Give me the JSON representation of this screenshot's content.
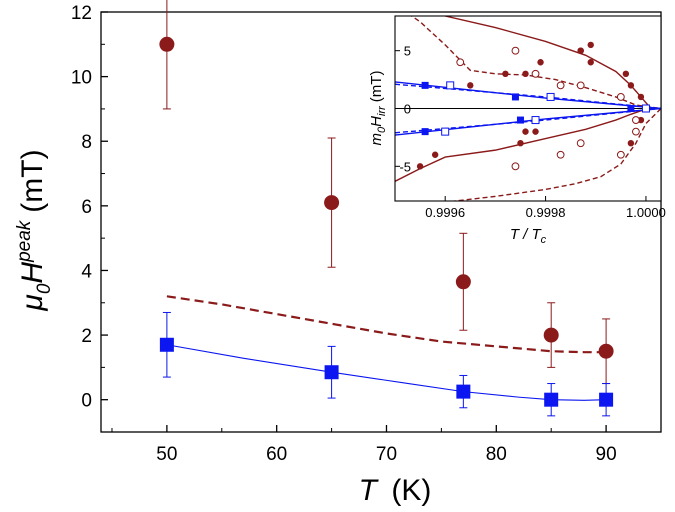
{
  "colors": {
    "red": "#8b1a1a",
    "blue": "#0b16f0",
    "axis": "#000000"
  },
  "chart_data": [
    {
      "type": "scatter",
      "name": "main",
      "xlabel": {
        "base": "T",
        "unit": "(K)"
      },
      "ylabel": {
        "prefix": "μ",
        "prefix_sub": "0",
        "base": "H",
        "sup": "peak",
        "unit": "(mT)"
      },
      "xlim": [
        44,
        95
      ],
      "ylim": [
        -1,
        12
      ],
      "x_ticks": [
        50,
        60,
        70,
        80,
        90
      ],
      "x_tick_labels": [
        "50",
        "60",
        "70",
        "80",
        "90"
      ],
      "y_ticks": [
        0,
        2,
        4,
        6,
        8,
        10,
        12
      ],
      "y_tick_labels": [
        "0",
        "2",
        "4",
        "6",
        "8",
        "10",
        "12"
      ],
      "series": [
        {
          "marker": "circle",
          "color": "red",
          "x": [
            50,
            65,
            77,
            85,
            90
          ],
          "y": [
            11.0,
            6.1,
            3.65,
            2.0,
            1.5
          ],
          "err": [
            2.0,
            2.0,
            1.5,
            1.0,
            1.0
          ]
        },
        {
          "marker": "square",
          "color": "blue",
          "x": [
            50,
            65,
            77,
            85,
            90
          ],
          "y": [
            1.7,
            0.85,
            0.25,
            0.0,
            0.0
          ],
          "err": [
            1.0,
            0.8,
            0.5,
            0.5,
            0.5
          ],
          "line": {
            "style": "solid",
            "x": [
              50,
              57,
              65,
              72,
              77,
              82,
              85,
              88,
              90
            ],
            "y": [
              1.7,
              1.28,
              0.85,
              0.5,
              0.25,
              0.08,
              0.0,
              -0.02,
              0.0
            ]
          }
        },
        {
          "marker": "none",
          "color": "red",
          "line": {
            "style": "dashed",
            "x": [
              50,
              55,
              60,
              65,
              70,
              75,
              80,
              85,
              88,
              90
            ],
            "y": [
              3.2,
              2.95,
              2.65,
              2.35,
              2.05,
              1.8,
              1.65,
              1.5,
              1.47,
              1.47
            ]
          }
        }
      ]
    },
    {
      "type": "scatter",
      "name": "inset",
      "xlabel": {
        "base": "T / T",
        "sub": "c"
      },
      "ylabel": {
        "prefix": "m",
        "prefix_sub": "0",
        "base": "H",
        "sub": "irr",
        "unit": "(mT)"
      },
      "xlim": [
        0.9995,
        1.00003
      ],
      "ylim": [
        -8,
        8
      ],
      "x_ticks": [
        0.9996,
        0.9998,
        1.0
      ],
      "x_tick_labels": [
        "0.9996",
        "0.9998",
        "1.0000"
      ],
      "y_ticks": [
        -5,
        0,
        5
      ],
      "y_tick_labels": [
        "-5",
        "0",
        "5"
      ],
      "series": [
        {
          "marker": "circle-filled",
          "color": "red",
          "x": [
            0.99955,
            0.99958,
            0.99975,
            0.99976,
            0.99978,
            0.99987,
            0.99989,
            0.99996,
            0.99997,
            0.99999,
            0.99999,
            0.99998,
            0.99997,
            0.99995,
            0.99989,
            0.99987,
            0.99979,
            0.99976,
            0.99972,
            0.99965
          ],
          "y": [
            -5,
            -4,
            -3,
            -2,
            -2,
            5,
            4,
            3,
            2,
            1,
            -1,
            -2,
            -3,
            -4,
            5.5,
            5,
            4,
            3,
            3,
            2
          ]
        },
        {
          "marker": "circle-open",
          "color": "red",
          "x": [
            0.99963,
            0.99974,
            0.99978,
            0.99983,
            0.99987,
            0.99995,
            0.99998,
            0.99998,
            0.99995,
            0.99987,
            0.99983,
            0.99974
          ],
          "y": [
            4,
            5,
            3,
            2,
            2,
            1,
            -1,
            -2,
            -4,
            -3,
            -4,
            -5
          ]
        },
        {
          "marker": "square-filled",
          "color": "blue",
          "x": [
            0.99956,
            0.99974,
            0.99997,
            0.99956,
            0.99975
          ],
          "y": [
            2,
            1,
            0,
            -2,
            -1
          ]
        },
        {
          "marker": "square-open",
          "color": "blue",
          "x": [
            0.99961,
            0.99981,
            1.0,
            0.9996,
            0.99978
          ],
          "y": [
            2,
            1,
            0,
            -2,
            -1
          ]
        },
        {
          "marker": "none",
          "color": "red",
          "style": "solid",
          "x": [
            0.9995,
            0.99955,
            0.9996,
            0.9997,
            0.9998,
            0.99988,
            0.99994,
            0.99997,
            0.99999,
            1.00001
          ],
          "y": [
            9.5,
            8.7,
            8.0,
            7.0,
            5.8,
            4.6,
            3.2,
            2.0,
            1.0,
            0
          ]
        },
        {
          "marker": "none",
          "color": "red",
          "style": "solid",
          "x": [
            0.9995,
            0.99955,
            0.9996,
            0.9997,
            0.9998,
            0.99988,
            0.99994,
            0.99997,
            0.99999,
            1.00001
          ],
          "y": [
            -6.3,
            -5.2,
            -4.2,
            -3.6,
            -2.6,
            -1.8,
            -1.0,
            -0.5,
            -0.2,
            0
          ]
        },
        {
          "marker": "none",
          "color": "red",
          "style": "dashed",
          "x": [
            0.9995,
            0.99955,
            0.9996,
            0.99965,
            0.9997,
            0.99976,
            0.99982,
            0.99988,
            0.99994,
            0.99998,
            1.00003
          ],
          "y": [
            9.0,
            7.5,
            5.5,
            3.3,
            3.0,
            2.9,
            2.5,
            1.8,
            1.0,
            0.3,
            0
          ]
        },
        {
          "marker": "none",
          "color": "red",
          "style": "dashed",
          "x": [
            0.9995,
            0.9996,
            0.9997,
            0.9998,
            0.99986,
            0.99991,
            0.99995,
            0.99998,
            1.0,
            1.00003
          ],
          "y": [
            -8.5,
            -8.1,
            -7.6,
            -7.0,
            -6.5,
            -5.9,
            -4.8,
            -3.0,
            -1.3,
            0
          ]
        },
        {
          "marker": "none",
          "color": "blue",
          "style": "solid",
          "x": [
            0.9995,
            0.9998,
            1.00003
          ],
          "y": [
            2.3,
            0.9,
            0
          ]
        },
        {
          "marker": "none",
          "color": "blue",
          "style": "solid",
          "x": [
            0.9995,
            0.9998,
            1.00003
          ],
          "y": [
            -2.3,
            -0.9,
            0
          ]
        },
        {
          "marker": "none",
          "color": "blue",
          "style": "dashed",
          "x": [
            0.9995,
            0.9998,
            1.00003
          ],
          "y": [
            2.1,
            1.0,
            0
          ]
        },
        {
          "marker": "none",
          "color": "blue",
          "style": "dashed",
          "x": [
            0.9995,
            0.9998,
            1.00003
          ],
          "y": [
            -2.1,
            -1.0,
            0
          ]
        }
      ]
    }
  ]
}
